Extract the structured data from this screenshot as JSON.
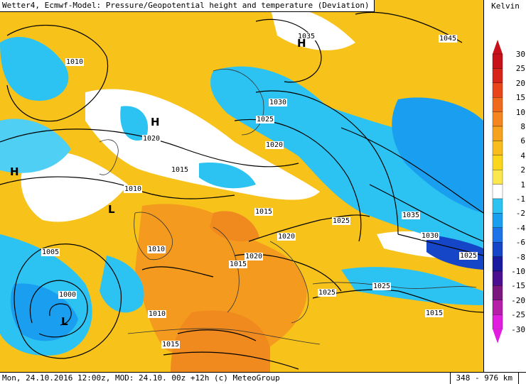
{
  "title": "Wetter4, Ecmwf-Model: Pressure/Geopotential height and temperature (Deviation)",
  "footer": {
    "left": "Mon, 24.10.2016 12:00z, MOD: 24.10. 00z +12h (c) MeteoGroup",
    "scale": "348 - 976 km"
  },
  "legend": {
    "unit": "Kelvin",
    "ticks": [
      "30",
      "25",
      "20",
      "15",
      "10",
      "8",
      "6",
      "4",
      "2",
      "1",
      "-1",
      "-2",
      "-4",
      "-6",
      "-8",
      "-10",
      "-15",
      "-20",
      "-25",
      "-30"
    ],
    "colors": [
      "#c8101a",
      "#d82418",
      "#e8451a",
      "#f06a1c",
      "#f5861f",
      "#f7a21f",
      "#f8bd1c",
      "#fbd61a",
      "#fbe74e",
      "#ffffff",
      "#2cc3f2",
      "#1a9ff0",
      "#1c74e8",
      "#1646c8",
      "#1a1aa0",
      "#4a1090",
      "#7a1880",
      "#b41ea8",
      "#e11ee0"
    ]
  },
  "isobars": [
    "1010",
    "1035",
    "1045",
    "1030",
    "1025",
    "1020",
    "1020",
    "1015",
    "1010",
    "1015",
    "1025",
    "1035",
    "1030",
    "1025",
    "1020",
    "1010",
    "1005",
    "1000",
    "1015",
    "1020",
    "1025",
    "1025",
    "1015",
    "1010",
    "1015"
  ],
  "symbols": [
    "H",
    "H",
    "H",
    "L",
    "L"
  ],
  "colors": {
    "warm": "#f7c21a",
    "cool": "#2cc3f2",
    "neutral": "#ffffff"
  }
}
